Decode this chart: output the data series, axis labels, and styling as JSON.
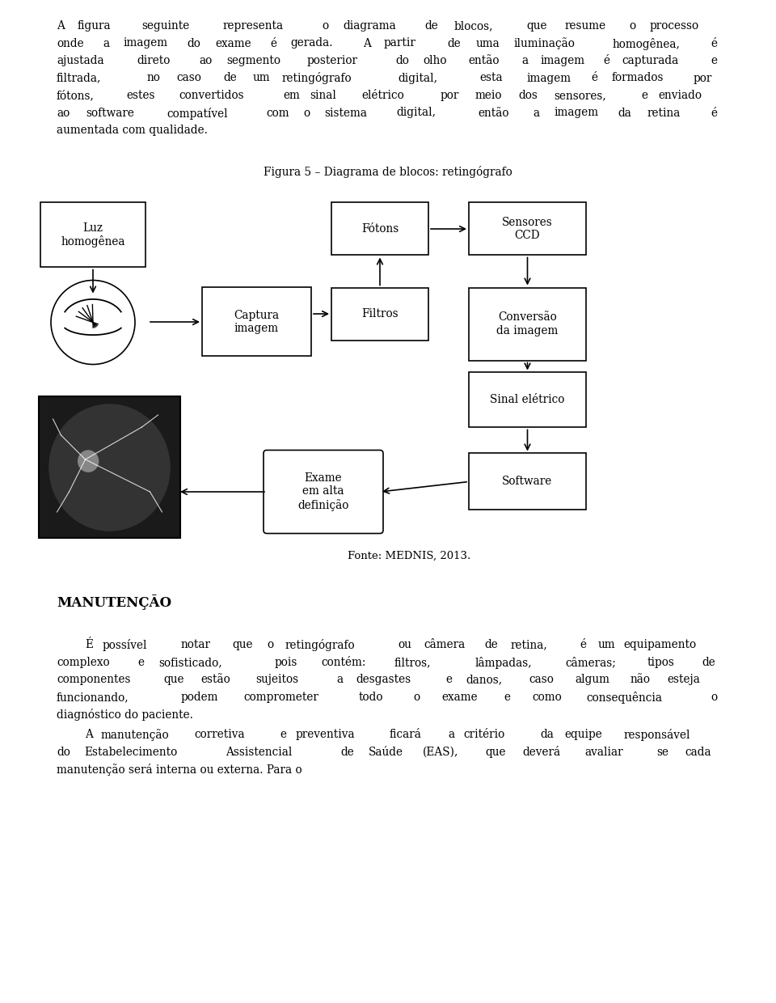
{
  "bg_color": "#ffffff",
  "page_width": 9.6,
  "page_height": 12.4,
  "top_paragraph": "A figura seguinte representa o diagrama de blocos, que resume o processo onde a imagem do exame é gerada. A partir de uma iluminação homogênea, é ajustada direto ao segmento posterior do olho então a imagem é capturada e filtrada, no caso de um retingógrafo digital, esta imagem é formados por fótons, estes convertidos em sinal elétrico por meio dos sensores, e enviado ao software compatível com o sistema digital, então a imagem da retina é aumentada com qualidade.",
  "figure_title": "Figura 5 – Diagrama de blocos: retingógrafo",
  "fonte": "Fonte: MEDNIS, 2013.",
  "heading": "MANUTENÇÃO",
  "paragraph2": "É possível notar que o retingógrafo ou câmera de retina, é um equipamento complexo e sofisticado, pois contém: filtros, lâmpadas, câmeras; tipos de componentes que estão sujeitos a desgastes e danos, caso algum não esteja funcionando, podem comprometer todo o exame e como consequência o diagnóstico do paciente.",
  "paragraph3": "A manutenção corretiva e preventiva ficará a critério da equipe responsável do Estabelecimento Assistencial de Saúde (EAS), que deverá avaliar se cada manutenção será interna ou externa. Para o"
}
